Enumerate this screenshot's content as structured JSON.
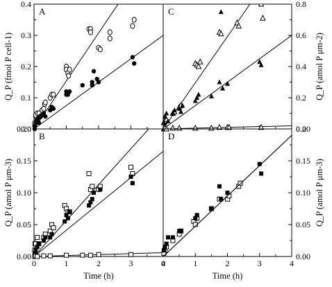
{
  "chart_data": [
    {
      "panel": "A",
      "type": "scatter",
      "xlabel": "",
      "ylabel": "Q_P (fmol P cell-1)",
      "xlim": [
        0,
        4
      ],
      "ylim": [
        0,
        0.4
      ],
      "yticks": [
        "0.0",
        "0.1",
        "0.2",
        "0.3",
        "0.4"
      ],
      "series": [
        {
          "marker": "open-circle",
          "x": [
            0.02,
            0.02,
            0.05,
            0.05,
            0.1,
            0.1,
            0.15,
            0.2,
            0.25,
            0.3,
            0.33,
            0.35,
            0.5,
            0.55,
            0.6,
            1.0,
            1.0,
            1.05,
            1.07,
            1.1,
            1.7,
            1.75,
            1.75,
            2.0,
            2.05,
            2.35,
            2.35,
            3.05,
            3.1
          ],
          "y": [
            0.01,
            0.02,
            0.04,
            0.045,
            0.03,
            0.05,
            0.05,
            0.04,
            0.06,
            0.065,
            0.08,
            0.085,
            0.1,
            0.11,
            0.11,
            0.2,
            0.19,
            0.18,
            0.17,
            0.19,
            0.32,
            0.32,
            0.31,
            0.26,
            0.255,
            0.29,
            0.31,
            0.33,
            0.35
          ],
          "fit": [
            [
              0,
              0
            ],
            [
              2.6,
              0.4
            ]
          ]
        },
        {
          "marker": "filled-circle",
          "x": [
            0.02,
            0.03,
            0.05,
            0.1,
            0.15,
            0.2,
            0.3,
            0.35,
            0.5,
            0.55,
            0.6,
            1.0,
            1.0,
            1.05,
            1.1,
            1.5,
            1.8,
            1.8,
            1.85,
            1.95,
            2.0,
            3.05,
            3.1
          ],
          "y": [
            0.0,
            0.01,
            0.02,
            0.03,
            0.02,
            0.04,
            0.05,
            0.04,
            0.06,
            0.07,
            0.065,
            0.11,
            0.12,
            0.11,
            0.12,
            0.14,
            0.14,
            0.15,
            0.185,
            0.16,
            0.15,
            0.23,
            0.21
          ],
          "fit": [
            [
              0,
              0
            ],
            [
              4,
              0.3
            ]
          ]
        }
      ]
    },
    {
      "panel": "B",
      "type": "scatter",
      "xlabel": "Time (h)",
      "ylabel": "Q_P (amol P μm-3)",
      "xlim": [
        0,
        4
      ],
      "ylim": [
        0,
        0.2
      ],
      "xticks": [
        "0",
        "1",
        "2",
        "3",
        "4"
      ],
      "yticks": [
        "0.00",
        "0.05",
        "0.10",
        "0.15",
        "0.20"
      ],
      "series": [
        {
          "marker": "open-square",
          "x": [
            0.02,
            0.03,
            0.05,
            0.1,
            0.15,
            0.3,
            0.35,
            0.5,
            0.55,
            0.6,
            0.95,
            1.0,
            1.05,
            1.1,
            1.7,
            1.75,
            1.8,
            2.0,
            2.05,
            3.0,
            3.05
          ],
          "y": [
            0.01,
            0.02,
            0.02,
            0.03,
            0.02,
            0.03,
            0.035,
            0.04,
            0.05,
            0.045,
            0.08,
            0.075,
            0.07,
            0.07,
            0.13,
            0.105,
            0.11,
            0.105,
            0.11,
            0.14,
            0.13
          ],
          "fit": [
            [
              0,
              0
            ],
            [
              3.55,
              0.2
            ]
          ]
        },
        {
          "marker": "filled-square",
          "x": [
            0.02,
            0.05,
            0.1,
            0.15,
            0.3,
            0.35,
            0.5,
            0.55,
            0.95,
            1.0,
            1.05,
            1.1,
            1.7,
            1.75,
            1.8,
            1.85,
            2.05,
            3.0,
            3.05
          ],
          "y": [
            0.005,
            0.01,
            0.015,
            0.02,
            0.025,
            0.03,
            0.03,
            0.035,
            0.055,
            0.065,
            0.06,
            0.07,
            0.08,
            0.085,
            0.09,
            0.1,
            0.105,
            0.125,
            0.115
          ],
          "fit": [
            [
              0,
              0
            ],
            [
              4,
              0.165
            ]
          ]
        },
        {
          "marker": "open-square",
          "x": [
            0.02,
            0.05,
            0.1,
            0.3,
            0.5,
            1.0,
            1.5,
            1.75,
            2.0,
            3.0
          ],
          "y": [
            0.0,
            0.001,
            0.0,
            0.001,
            0.001,
            0.002,
            0.002,
            0.002,
            0.003,
            0.003
          ],
          "fit": [
            [
              0,
              0
            ],
            [
              4,
              0.006
            ]
          ]
        }
      ]
    },
    {
      "panel": "C",
      "type": "scatter",
      "xlabel": "",
      "ylabel": "Q_P (amol P μm-2)",
      "xlim": [
        0,
        4
      ],
      "ylim": [
        0,
        0.8
      ],
      "yticks": [
        "0.0",
        "0.2",
        "0.4",
        "0.6",
        "0.8"
      ],
      "series": [
        {
          "marker": "open-triangle",
          "x": [
            0.02,
            0.05,
            0.1,
            0.3,
            0.35,
            0.5,
            0.55,
            1.0,
            1.05,
            1.1,
            1.15,
            1.75,
            1.8,
            2.3,
            2.35,
            3.05,
            3.1
          ],
          "y": [
            0.04,
            0.05,
            0.06,
            0.1,
            0.11,
            0.14,
            0.15,
            0.42,
            0.41,
            0.4,
            0.43,
            0.62,
            0.61,
            0.68,
            0.66,
            0.8,
            0.71
          ],
          "fit": [
            [
              0,
              0
            ],
            [
              2.7,
              0.8
            ]
          ]
        },
        {
          "marker": "filled-triangle",
          "x": [
            0.02,
            0.05,
            0.1,
            0.15,
            0.3,
            0.35,
            0.5,
            0.55,
            0.6,
            1.0,
            1.05,
            1.1,
            1.5,
            1.75,
            1.8,
            1.85,
            2.0,
            3.0,
            3.05
          ],
          "y": [
            0.04,
            0.08,
            0.1,
            0.05,
            0.1,
            0.12,
            0.13,
            0.11,
            0.15,
            0.18,
            0.2,
            0.22,
            0.21,
            0.3,
            0.75,
            0.26,
            0.29,
            0.43,
            0.41
          ],
          "fit": [
            [
              0,
              0
            ],
            [
              4,
              0.6
            ]
          ]
        },
        {
          "marker": "open-triangle",
          "x": [
            0.02,
            0.05,
            0.1,
            0.3,
            0.5,
            1.0,
            1.5,
            1.75,
            2.0,
            2.05,
            3.05
          ],
          "y": [
            0.0,
            0.005,
            0.0,
            0.005,
            0.005,
            0.005,
            0.005,
            0.01,
            0.01,
            0.01,
            0.01
          ],
          "fit": [
            [
              0,
              0
            ],
            [
              4,
              0.02
            ]
          ]
        }
      ]
    },
    {
      "panel": "D",
      "type": "scatter",
      "xlabel": "Time (h)",
      "ylabel": "Q_P (amol P μm-3)",
      "xlim": [
        0,
        4
      ],
      "ylim": [
        0,
        0.2
      ],
      "xticks": [
        "0",
        "1",
        "2",
        "3",
        "4"
      ],
      "yticks": [
        "0.00",
        "0.05",
        "0.10",
        "0.15",
        "0.20"
      ],
      "series": [
        {
          "marker": "open-square",
          "x": [
            0.02,
            0.05,
            0.1,
            0.3,
            0.5,
            0.55,
            0.95,
            1.0,
            1.05,
            1.5,
            1.75,
            2.0,
            2.05,
            2.35,
            2.4
          ],
          "y": [
            0.005,
            0.01,
            0.015,
            0.025,
            0.035,
            0.04,
            0.055,
            0.05,
            0.06,
            0.075,
            0.09,
            0.09,
            0.095,
            0.11,
            0.115
          ],
          "fit": [
            [
              0,
              0
            ],
            [
              4,
              0.19
            ]
          ]
        },
        {
          "marker": "filled-square",
          "x": [
            0.02,
            0.05,
            0.1,
            0.15,
            0.3,
            0.5,
            0.55,
            1.0,
            1.05,
            1.5,
            1.75,
            1.8,
            2.0,
            3.0,
            3.05
          ],
          "y": [
            0.01,
            0.015,
            0.02,
            0.03,
            0.03,
            0.04,
            0.04,
            0.06,
            0.065,
            0.075,
            0.11,
            0.09,
            0.1,
            0.145,
            0.13
          ],
          "fit": [
            [
              0,
              0
            ],
            [
              4,
              0.19
            ]
          ]
        }
      ]
    }
  ]
}
